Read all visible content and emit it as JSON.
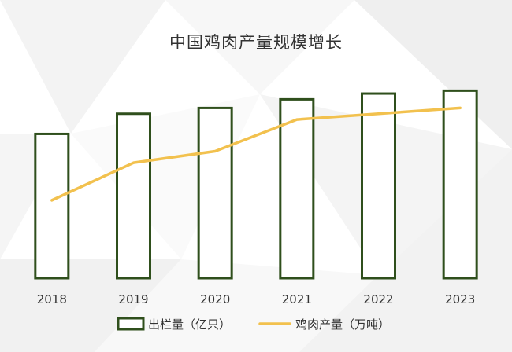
{
  "chart_data": {
    "type": "bar",
    "title": "中国鸡肉产量规模增长",
    "categories": [
      "2018",
      "2019",
      "2020",
      "2021",
      "2022",
      "2023"
    ],
    "series": [
      {
        "name": "出栏量（亿只）",
        "type": "bar",
        "values": [
          5.0,
          5.7,
          5.9,
          6.2,
          6.4,
          6.5
        ]
      },
      {
        "name": "鸡肉产量（万吨）",
        "type": "line",
        "values": [
          2.7,
          4.0,
          4.4,
          5.5,
          5.7,
          5.9
        ]
      }
    ],
    "ylim": [
      0,
      7.6
    ],
    "grid": false,
    "legend_position": "bottom",
    "colors": {
      "bar_stroke": "#2f4f1c",
      "bar_fill": "#ffffff",
      "line": "#f2c14e"
    }
  }
}
